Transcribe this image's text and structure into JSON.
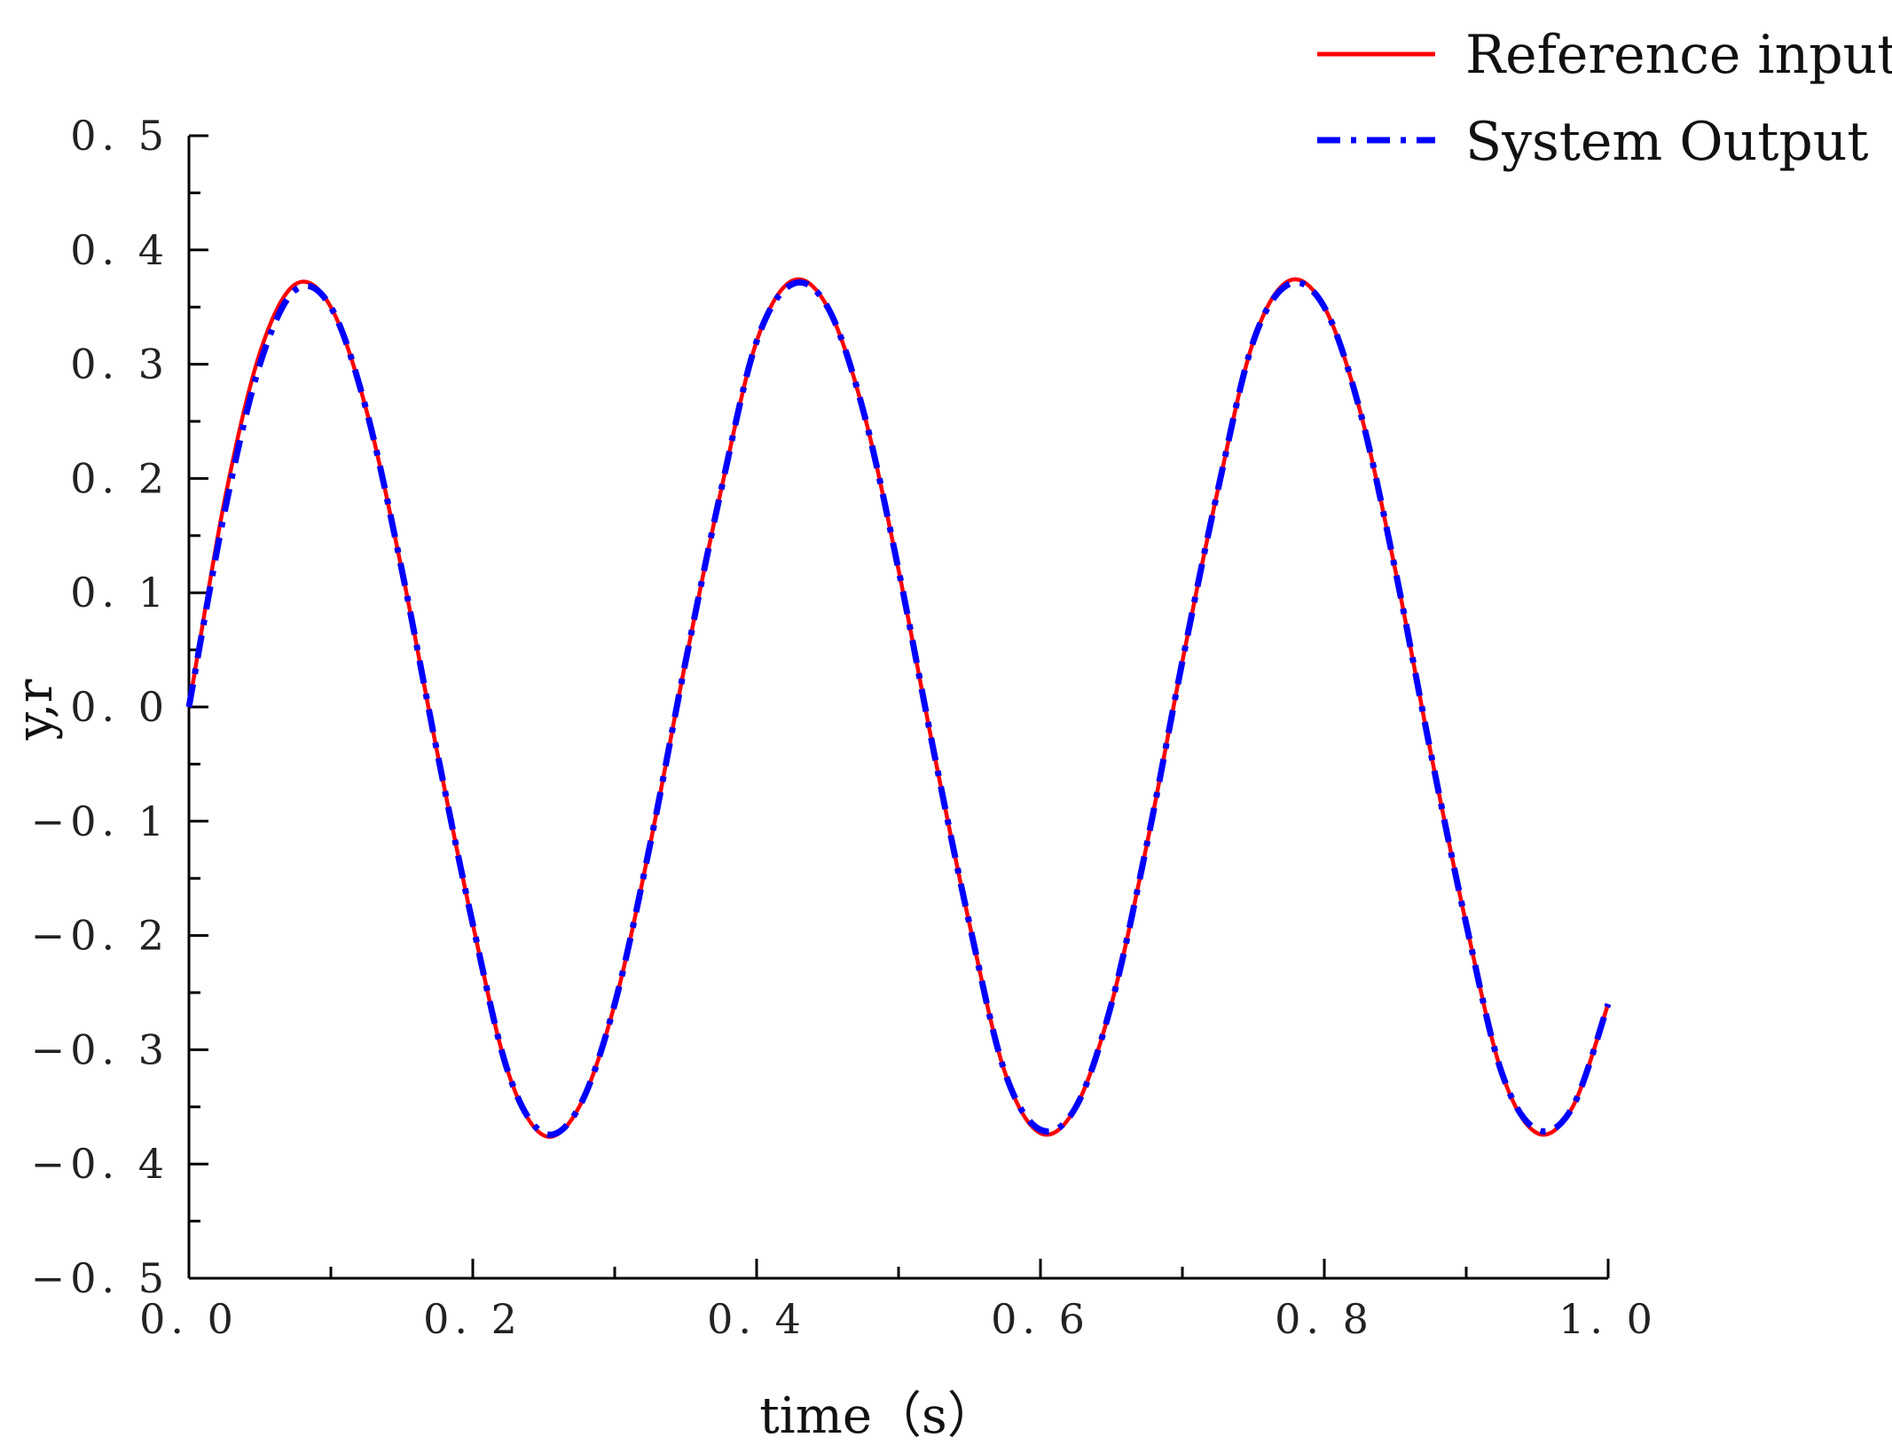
{
  "chart_data": {
    "type": "line",
    "title": "",
    "xlabel": "time（s）",
    "ylabel": "y,r",
    "xlim": [
      0.0,
      1.0
    ],
    "ylim": [
      -0.5,
      0.5
    ],
    "x_ticks": [
      0.0,
      0.2,
      0.4,
      0.6,
      0.8,
      1.0
    ],
    "x_tick_labels": [
      "0. 0",
      "0. 2",
      "0. 4",
      "0. 6",
      "0. 8",
      "1. 0"
    ],
    "y_ticks": [
      0.5,
      0.4,
      0.3,
      0.2,
      0.1,
      0.0,
      -0.1,
      -0.2,
      -0.3,
      -0.4,
      -0.5
    ],
    "y_tick_labels": [
      "0. 5",
      "0. 4",
      "0. 3",
      "0. 2",
      "0. 1",
      "0. 0",
      "−0. 1",
      "−0. 2",
      "−0. 3",
      "−0. 4",
      "−0. 5"
    ],
    "grid": false,
    "legend_position": "top-right",
    "series": [
      {
        "name": "Reference input",
        "color": "#ff0000",
        "style": "solid",
        "x": [
          0.0,
          0.025,
          0.05,
          0.075,
          0.1,
          0.125,
          0.15,
          0.175,
          0.2,
          0.225,
          0.25,
          0.275,
          0.3,
          0.325,
          0.35,
          0.375,
          0.4,
          0.425,
          0.45,
          0.475,
          0.5,
          0.525,
          0.55,
          0.575,
          0.6,
          0.625,
          0.65,
          0.675,
          0.7,
          0.725,
          0.75,
          0.775,
          0.8,
          0.825,
          0.85,
          0.875,
          0.9,
          0.925,
          0.95,
          0.975,
          1.0
        ],
        "y": [
          0.0,
          0.18,
          0.31,
          0.37,
          0.35,
          0.26,
          0.12,
          -0.04,
          -0.19,
          -0.32,
          -0.375,
          -0.35,
          -0.26,
          -0.12,
          0.04,
          0.19,
          0.32,
          0.373,
          0.35,
          0.26,
          0.12,
          -0.04,
          -0.19,
          -0.32,
          -0.373,
          -0.35,
          -0.26,
          -0.12,
          0.04,
          0.19,
          0.32,
          0.373,
          0.35,
          0.26,
          0.12,
          -0.04,
          -0.19,
          -0.32,
          -0.373,
          -0.35,
          -0.26
        ]
      },
      {
        "name": "System Output",
        "color": "#0000ff",
        "style": "dashdot",
        "x": [
          0.0,
          0.025,
          0.05,
          0.075,
          0.1,
          0.125,
          0.15,
          0.175,
          0.2,
          0.225,
          0.25,
          0.275,
          0.3,
          0.325,
          0.35,
          0.375,
          0.4,
          0.425,
          0.45,
          0.475,
          0.5,
          0.525,
          0.55,
          0.575,
          0.6,
          0.625,
          0.65,
          0.675,
          0.7,
          0.725,
          0.75,
          0.775,
          0.8,
          0.825,
          0.85,
          0.875,
          0.9,
          0.925,
          0.95,
          0.975,
          1.0
        ],
        "y": [
          0.0,
          0.17,
          0.3,
          0.365,
          0.35,
          0.26,
          0.12,
          -0.04,
          -0.19,
          -0.32,
          -0.373,
          -0.35,
          -0.26,
          -0.12,
          0.04,
          0.19,
          0.32,
          0.37,
          0.35,
          0.26,
          0.12,
          -0.04,
          -0.19,
          -0.32,
          -0.37,
          -0.35,
          -0.26,
          -0.12,
          0.04,
          0.19,
          0.32,
          0.37,
          0.35,
          0.26,
          0.12,
          -0.04,
          -0.19,
          -0.32,
          -0.37,
          -0.35,
          -0.26
        ]
      }
    ]
  }
}
